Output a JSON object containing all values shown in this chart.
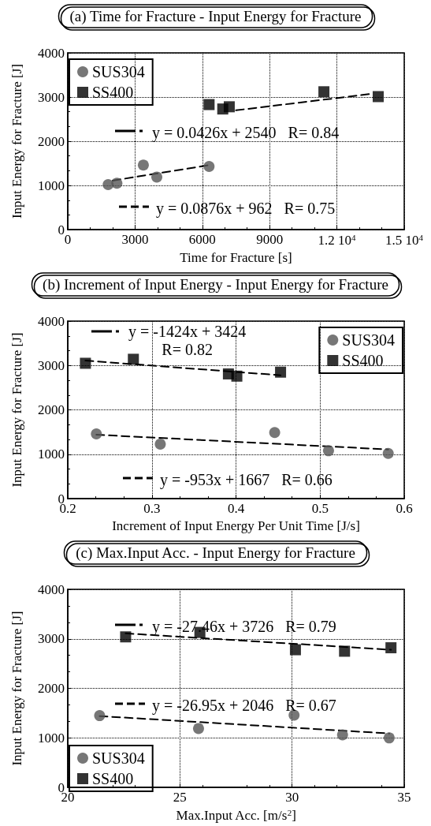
{
  "chart_data": [
    {
      "type": "scatter",
      "title": "(a) Time for Fracture - Input Energy for Fracture",
      "xlabel": "Time for Fracture [s]",
      "ylabel": "Input Energy for Fracture [J]",
      "xlim": [
        0,
        15000
      ],
      "xticks": [
        0,
        3000,
        6000,
        9000,
        {
          "value": 12000,
          "label": "1.2 10$^{4}$"
        },
        {
          "value": 15000,
          "label": "1.5 10$^{4}$"
        }
      ],
      "ylim": [
        0,
        4000
      ],
      "yticks": [
        0,
        1000,
        2000,
        3000,
        4000
      ],
      "grid": true,
      "legend": "top left",
      "annotations": [
        "y = 0.0426x + 2540   R= 0.84",
        "y = 0.0876x + 962   R= 0.75"
      ],
      "series": [
        {
          "name": "SUS304",
          "color": "#555555",
          "marker": "circle",
          "x": [
            1800,
            2190,
            3370,
            3970,
            6300
          ],
          "values": [
            1020,
            1050,
            1460,
            1190,
            1430
          ]
        },
        {
          "name": "SS400",
          "color": "#000000",
          "marker": "square",
          "x": [
            6300,
            6910,
            7200,
            11420,
            13840
          ],
          "values": [
            2830,
            2730,
            2780,
            3120,
            3010
          ]
        },
        {
          "type": "line",
          "color": "#000000",
          "marker": "none",
          "line_style": "dashed",
          "x": [
            7500,
            13500
          ],
          "values": [
            2700,
            3070
          ]
        },
        {
          "type": "line",
          "color": "#000000",
          "marker": "none",
          "line_style": "dashed",
          "x": [
            2000,
            6300
          ],
          "values": [
            1110,
            1460
          ]
        }
      ]
    },
    {
      "type": "scatter",
      "title": "(b) Increment of Input Energy - Input Energy for Fracture",
      "xlabel": "Increment of Input Energy Per Unit Time [J/s]",
      "ylabel": "Input Energy for Fracture [J]",
      "xlim": [
        0.2,
        0.6
      ],
      "xticks": [
        0.2,
        0.3,
        0.4,
        0.5,
        0.6
      ],
      "ylim": [
        0,
        4000
      ],
      "yticks": [
        0,
        1000,
        2000,
        3000,
        4000
      ],
      "grid": true,
      "legend": "top right",
      "annotations": [
        "y = -1424x + 3424\nR= 0.82",
        "y = -953x + 1667   R= 0.66"
      ],
      "series": [
        {
          "name": "SUS304",
          "color": "#555555",
          "marker": "circle",
          "x": [
            0.234,
            0.31,
            0.446,
            0.51,
            0.581
          ],
          "values": [
            1460,
            1230,
            1490,
            1080,
            1020
          ]
        },
        {
          "name": "SS400",
          "color": "#000000",
          "marker": "square",
          "x": [
            0.221,
            0.278,
            0.391,
            0.401,
            0.453
          ],
          "values": [
            3050,
            3140,
            2810,
            2760,
            2850
          ]
        },
        {
          "type": "line",
          "color": "#000000",
          "marker": "none",
          "line_style": "dashed",
          "x": [
            0.221,
            0.453
          ],
          "values": [
            3110,
            2780
          ]
        },
        {
          "type": "line",
          "color": "#000000",
          "marker": "none",
          "line_style": "dashed",
          "x": [
            0.234,
            0.581
          ],
          "values": [
            1440,
            1110
          ]
        }
      ]
    },
    {
      "type": "scatter",
      "title": "(c) Max.Input Acc. - Input Energy for Fracture",
      "xlabel": "Max.Input Acc. [m/s$^{2}$]",
      "ylabel": "Input Energy for Fracture [J]",
      "xlim": [
        20,
        35
      ],
      "xticks": [
        20,
        25,
        30,
        35
      ],
      "ylim": [
        0,
        4000
      ],
      "yticks": [
        0,
        1000,
        2000,
        3000,
        4000
      ],
      "grid": true,
      "legend": "bottom left",
      "annotations": [
        "y = -27.46x + 3726   R= 0.79",
        "y = -26.95x + 2046   R= 0.67"
      ],
      "series": [
        {
          "name": "SUS304",
          "color": "#555555",
          "marker": "circle",
          "x": [
            21.42,
            25.83,
            30.09,
            32.25,
            34.33
          ],
          "values": [
            1450,
            1190,
            1460,
            1060,
            1000
          ]
        },
        {
          "name": "SS400",
          "color": "#000000",
          "marker": "square",
          "x": [
            22.58,
            25.89,
            30.15,
            32.34,
            34.41
          ],
          "values": [
            3040,
            3130,
            2780,
            2750,
            2820
          ]
        },
        {
          "type": "line",
          "color": "#000000",
          "marker": "none",
          "line_style": "dashed",
          "x": [
            22.58,
            34.41
          ],
          "values": [
            3110,
            2780
          ]
        },
        {
          "type": "line",
          "color": "#000000",
          "marker": "none",
          "line_style": "dashed",
          "x": [
            21.42,
            34.33
          ],
          "values": [
            1440,
            1090
          ]
        }
      ]
    }
  ]
}
